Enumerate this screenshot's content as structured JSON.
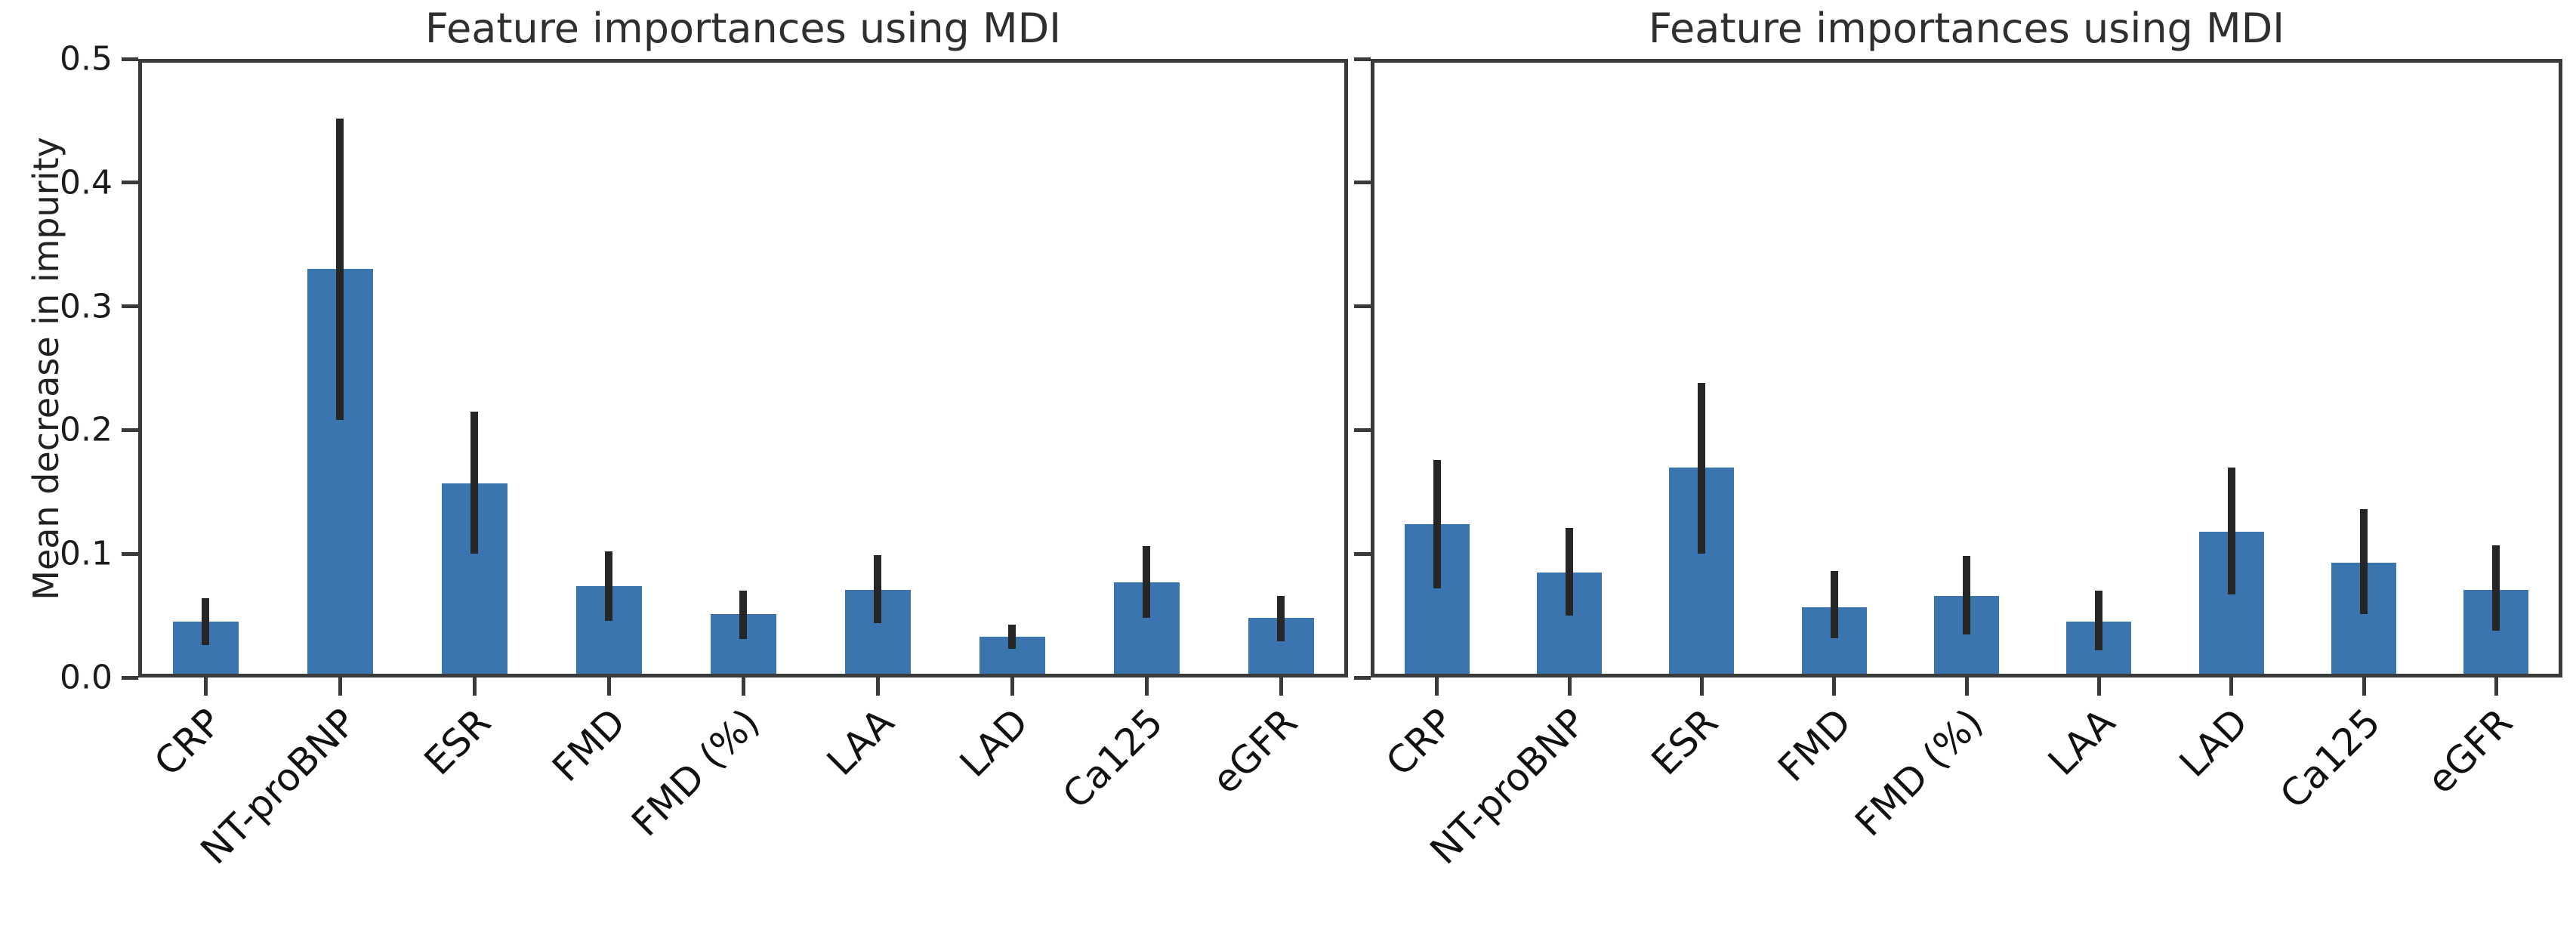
{
  "figure": {
    "background": "#ffffff",
    "bar_color": "#3a75b0",
    "error_bar_color": "#262626",
    "axis_color": "#3a3a3a"
  },
  "chart_data": [
    {
      "type": "bar",
      "title": "Feature importances using MDI",
      "ylabel": "Mean decrease in impurity",
      "xlabel": "",
      "ylim": [
        0,
        0.5
      ],
      "yticks": [
        0.0,
        0.1,
        0.2,
        0.3,
        0.4,
        0.5
      ],
      "ytick_labels": [
        "0.0",
        "0.1",
        "0.2",
        "0.3",
        "0.4",
        "0.5"
      ],
      "show_ytick_labels": true,
      "grid": false,
      "legend": null,
      "categories": [
        "CRP",
        "NT-proBNP",
        "ESR",
        "FMD",
        "FMD (%)",
        "LAA",
        "LAD",
        "Ca125",
        "eGFR"
      ],
      "values": [
        0.045,
        0.33,
        0.157,
        0.074,
        0.051,
        0.071,
        0.033,
        0.077,
        0.048
      ],
      "error_low": [
        0.026,
        0.208,
        0.1,
        0.046,
        0.031,
        0.044,
        0.023,
        0.048,
        0.029
      ],
      "error_high": [
        0.064,
        0.452,
        0.215,
        0.102,
        0.07,
        0.099,
        0.043,
        0.106,
        0.066
      ],
      "bar_color": "#3a75b0",
      "error_color": "#262626"
    },
    {
      "type": "bar",
      "title": "Feature importances using MDI",
      "ylabel": "",
      "xlabel": "",
      "ylim": [
        0,
        0.5
      ],
      "yticks": [
        0.0,
        0.1,
        0.2,
        0.3,
        0.4,
        0.5
      ],
      "ytick_labels": [
        "0.0",
        "0.1",
        "0.2",
        "0.3",
        "0.4",
        "0.5"
      ],
      "show_ytick_labels": false,
      "grid": false,
      "legend": null,
      "categories": [
        "CRP",
        "NT-proBNP",
        "ESR",
        "FMD",
        "FMD (%)",
        "LAA",
        "LAD",
        "Ca125",
        "eGFR"
      ],
      "values": [
        0.124,
        0.085,
        0.17,
        0.057,
        0.066,
        0.045,
        0.118,
        0.093,
        0.071
      ],
      "error_low": [
        0.072,
        0.05,
        0.1,
        0.032,
        0.035,
        0.022,
        0.067,
        0.051,
        0.038
      ],
      "error_high": [
        0.176,
        0.121,
        0.238,
        0.086,
        0.098,
        0.07,
        0.17,
        0.136,
        0.107
      ],
      "bar_color": "#3a75b0",
      "error_color": "#262626"
    }
  ]
}
